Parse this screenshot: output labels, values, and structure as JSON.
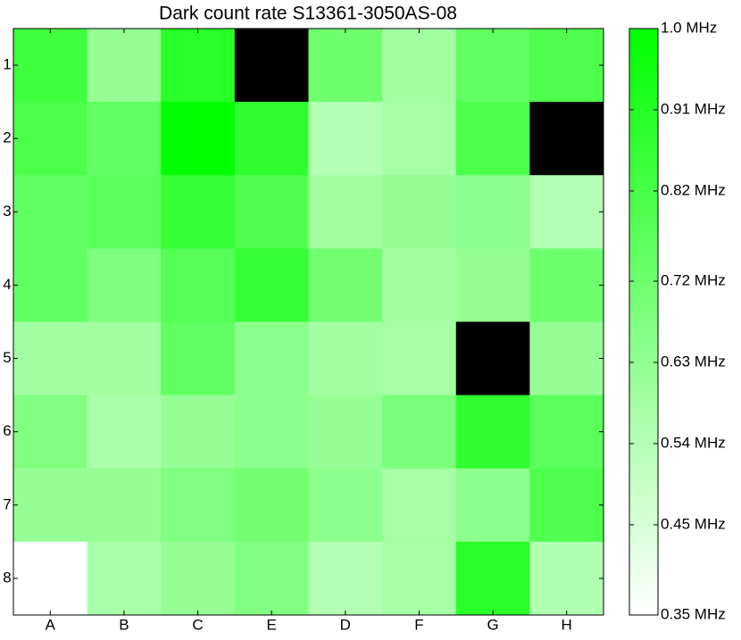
{
  "chart_data": {
    "type": "heatmap",
    "title": "Dark count rate S13361-3050AS-08",
    "x_categories": [
      "A",
      "B",
      "C",
      "E",
      "D",
      "F",
      "G",
      "H"
    ],
    "y_categories": [
      "1",
      "2",
      "3",
      "4",
      "5",
      "6",
      "7",
      "8"
    ],
    "values": [
      [
        0.84,
        0.62,
        0.9,
        null,
        0.72,
        0.59,
        0.75,
        0.8
      ],
      [
        0.81,
        0.75,
        1.0,
        0.88,
        0.54,
        0.58,
        0.81,
        null
      ],
      [
        0.75,
        0.77,
        0.86,
        0.8,
        0.59,
        0.62,
        0.64,
        0.54
      ],
      [
        0.75,
        0.68,
        0.78,
        0.86,
        0.71,
        0.59,
        0.62,
        0.72
      ],
      [
        0.59,
        0.59,
        0.75,
        0.64,
        0.59,
        0.58,
        null,
        0.62
      ],
      [
        0.67,
        0.57,
        0.62,
        0.64,
        0.62,
        0.69,
        0.88,
        0.77
      ],
      [
        0.62,
        0.62,
        0.67,
        0.71,
        0.64,
        0.58,
        0.64,
        0.8
      ],
      [
        0.35,
        0.57,
        0.62,
        0.67,
        0.54,
        0.58,
        0.9,
        0.55
      ]
    ],
    "clim": [
      0.35,
      1.0
    ],
    "cticks": [
      {
        "value": 0.35,
        "label": "0.35 MHz"
      },
      {
        "value": 0.45,
        "label": "0.45 MHz"
      },
      {
        "value": 0.54,
        "label": "0.54 MHz"
      },
      {
        "value": 0.63,
        "label": "0.63 MHz"
      },
      {
        "value": 0.72,
        "label": "0.72 MHz"
      },
      {
        "value": 0.82,
        "label": "0.82 MHz"
      },
      {
        "value": 0.91,
        "label": "0.91 MHz"
      },
      {
        "value": 1.0,
        "label": "1.0 MHz"
      }
    ],
    "colormap": [
      "#ffffff",
      "#00ff00"
    ],
    "missing_color": "#000000"
  }
}
